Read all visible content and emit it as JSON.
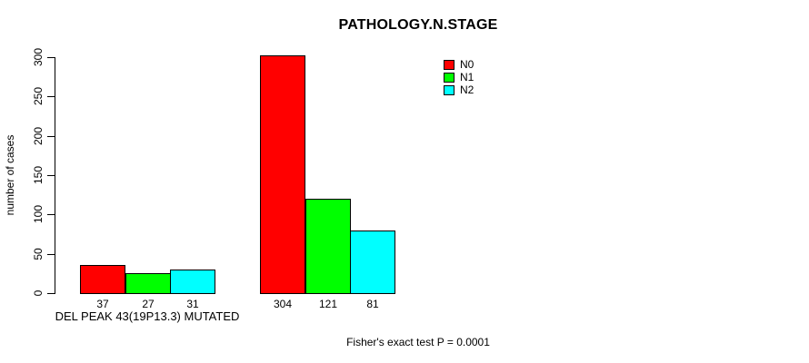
{
  "chart_data": {
    "type": "bar",
    "title": "PATHOLOGY.N.STAGE",
    "ylabel": "number of cases",
    "xlabel": "DEL PEAK 43(19P13.3) MUTATED",
    "footer": "Fisher's exact test P = 0.0001",
    "ylim": [
      0,
      300
    ],
    "yticks": [
      0,
      50,
      100,
      150,
      200,
      250,
      300
    ],
    "grid": false,
    "legend_position": "topright",
    "categories": [
      "DEL PEAK 43(19P13.3) MUTATED",
      ""
    ],
    "series": [
      {
        "name": "N0",
        "color": "#ff0000",
        "values": [
          37,
          304
        ]
      },
      {
        "name": "N1",
        "color": "#00ff00",
        "values": [
          27,
          121
        ]
      },
      {
        "name": "N2",
        "color": "#00ffff",
        "values": [
          31,
          81
        ]
      }
    ],
    "bar_value_labels": [
      [
        37,
        27,
        31
      ],
      [
        304,
        121,
        81
      ]
    ]
  }
}
